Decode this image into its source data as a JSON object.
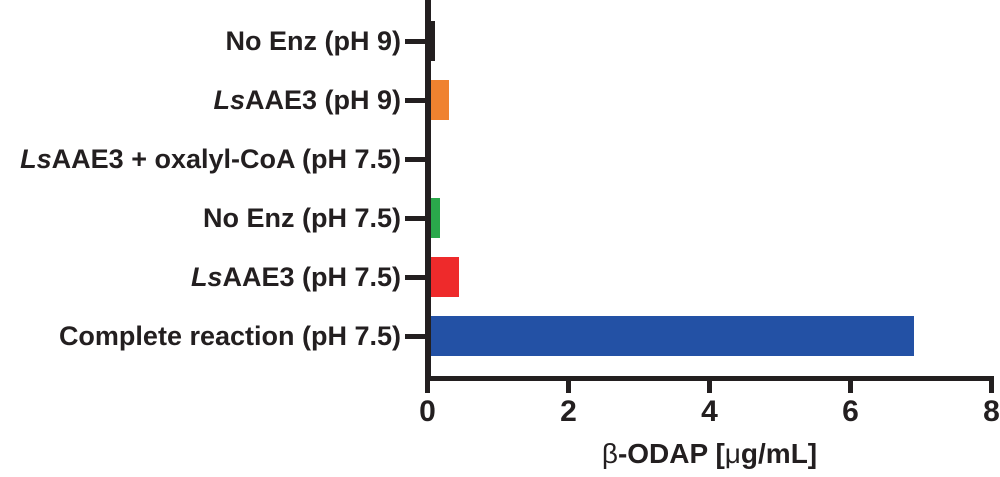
{
  "chart_data": {
    "type": "bar",
    "orientation": "horizontal",
    "title": "",
    "xlabel": "β-ODAP [μg/mL]",
    "xlabel_segments": [
      {
        "text": "β",
        "greek": true
      },
      {
        "text": "-ODAP [",
        "greek": false
      },
      {
        "text": "μ",
        "greek": true
      },
      {
        "text": "g/mL]",
        "greek": false
      }
    ],
    "ylabel": "",
    "xlim": [
      0,
      8
    ],
    "x_tick_labels": [
      "0",
      "2",
      "4",
      "6",
      "8"
    ],
    "x_tick_values": [
      0,
      2,
      4,
      6,
      8
    ],
    "grid": false,
    "legend": "none",
    "categories": [
      "No Enz (pH 9)",
      "LsAAE3 (pH 9)",
      "LsAAE3 + oxalyl-CoA (pH 7.5)",
      "No Enz (pH 7.5)",
      "LsAAE3 (pH 7.5)",
      "Complete reaction (pH 7.5)"
    ],
    "category_segments": [
      [
        {
          "text": "No Enz (pH 9)",
          "italic": false
        }
      ],
      [
        {
          "text": "Ls",
          "italic": true
        },
        {
          "text": "AAE3 (pH 9)",
          "italic": false
        }
      ],
      [
        {
          "text": "Ls",
          "italic": true
        },
        {
          "text": "AAE3 + oxalyl-CoA (pH 7.5)",
          "italic": false
        }
      ],
      [
        {
          "text": "No Enz (pH 7.5)",
          "italic": false
        }
      ],
      [
        {
          "text": "Ls",
          "italic": true
        },
        {
          "text": "AAE3 (pH 7.5)",
          "italic": false
        }
      ],
      [
        {
          "text": "Complete reaction (pH 7.5)",
          "italic": false
        }
      ]
    ],
    "values": [
      0.11,
      0.31,
      0,
      0.18,
      0.45,
      6.9
    ],
    "bar_colors": [
      "#231f20",
      "#f0822f",
      "#231f20",
      "#2aa84b",
      "#ee2a2b",
      "#2351a5"
    ],
    "axis_color": "#231f20",
    "background_color": "#ffffff"
  }
}
